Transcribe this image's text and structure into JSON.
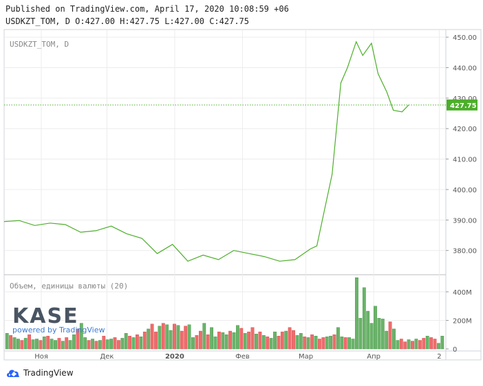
{
  "header": {
    "line1": "Published on TradingView.com, April 17, 2020 10:08:59 +06",
    "line2": "USDKZT_TOM, D O:427.00 H:427.75 L:427.00 C:427.75"
  },
  "symbol_label": "USDKZT_TOM, D",
  "volume_label": "Объем, единицы валюты (20)",
  "kase": {
    "logo": "KASE",
    "powered": "powered by TradingView"
  },
  "footer": {
    "brand": "TradingView"
  },
  "colors": {
    "line": "#4caf2a",
    "vol_up": "#6ab36a",
    "vol_down": "#f06b6b",
    "last_bg": "#4caf2a",
    "grid": "#ececec"
  },
  "chart_data": [
    {
      "type": "line",
      "series": [
        {
          "name": "USDKZT_TOM, D"
        }
      ],
      "x": [
        "2019-10-15",
        "2019-10-22",
        "2019-10-29",
        "2019-11-05",
        "2019-11-12",
        "2019-11-19",
        "2019-11-26",
        "2019-12-03",
        "2019-12-10",
        "2019-12-17",
        "2019-12-24",
        "2019-12-31",
        "2020-01-07",
        "2020-01-14",
        "2020-01-21",
        "2020-01-28",
        "2020-02-04",
        "2020-02-11",
        "2020-02-18",
        "2020-02-25",
        "2020-03-03",
        "2020-03-06",
        "2020-03-10",
        "2020-03-13",
        "2020-03-17",
        "2020-03-20",
        "2020-03-24",
        "2020-03-27",
        "2020-03-31",
        "2020-04-03",
        "2020-04-07",
        "2020-04-10",
        "2020-04-14",
        "2020-04-17"
      ],
      "values": [
        389.5,
        389.8,
        388.2,
        389.0,
        388.5,
        386.0,
        386.5,
        388.0,
        385.5,
        384.0,
        379.0,
        382.0,
        376.5,
        378.5,
        377.0,
        380.0,
        379.0,
        378.0,
        376.5,
        377.0,
        380.5,
        381.5,
        395.0,
        405.0,
        435.0,
        440.0,
        448.5,
        444.0,
        448.0,
        438.0,
        432.0,
        426.0,
        425.5,
        427.75
      ],
      "last_value": "427.75",
      "y_ticks": [
        "450.00",
        "440.00",
        "430.00",
        "420.00",
        "410.00",
        "400.00",
        "390.00",
        "380.00"
      ],
      "ylim": [
        372.5,
        452.5
      ]
    },
    {
      "type": "bar",
      "series": [
        {
          "name": "Объем, единицы валюты (20)"
        }
      ],
      "values": [
        110,
        95,
        80,
        70,
        60,
        75,
        100,
        65,
        70,
        60,
        85,
        90,
        70,
        60,
        75,
        55,
        80,
        60,
        100,
        140,
        180,
        80,
        60,
        70,
        55,
        60,
        90,
        65,
        70,
        80,
        60,
        75,
        110,
        90,
        80,
        100,
        85,
        120,
        140,
        175,
        120,
        160,
        180,
        170,
        130,
        175,
        165,
        125,
        160,
        170,
        80,
        95,
        125,
        180,
        100,
        150,
        85,
        120,
        115,
        100,
        125,
        115,
        165,
        145,
        110,
        120,
        150,
        105,
        120,
        95,
        85,
        75,
        120,
        90,
        120,
        125,
        150,
        130,
        95,
        110,
        85,
        80,
        100,
        90,
        70,
        80,
        85,
        90,
        100,
        150,
        85,
        80,
        80,
        70,
        500,
        215,
        430,
        265,
        180,
        300,
        215,
        210,
        125,
        190,
        140,
        60,
        70,
        50,
        65,
        55,
        70,
        60,
        75,
        90,
        80,
        70,
        40,
        90
      ],
      "up": [
        1,
        0,
        1,
        1,
        0,
        1,
        0,
        1,
        1,
        0,
        1,
        0,
        1,
        1,
        0,
        1,
        0,
        1,
        1,
        0,
        1,
        1,
        0,
        1,
        0,
        1,
        0,
        1,
        1,
        0,
        0,
        1,
        1,
        0,
        1,
        0,
        1,
        0,
        1,
        0,
        0,
        1,
        0,
        1,
        1,
        0,
        1,
        0,
        0,
        1,
        1,
        0,
        0,
        1,
        0,
        1,
        1,
        0,
        1,
        1,
        0,
        1,
        1,
        0,
        1,
        0,
        0,
        1,
        0,
        1,
        0,
        1,
        1,
        0,
        0,
        1,
        0,
        0,
        1,
        1,
        0,
        1,
        0,
        1,
        0,
        0,
        1,
        1,
        0,
        1,
        1,
        0,
        1,
        1,
        1,
        1,
        1,
        1,
        1,
        1,
        1,
        1,
        1,
        0,
        1,
        1,
        0,
        0,
        1,
        0,
        1,
        0,
        0,
        1,
        0,
        0,
        1,
        1
      ],
      "y_ticks": [
        "400M",
        "200M",
        "0"
      ],
      "ylim": [
        0,
        520
      ]
    }
  ],
  "x_ticks": [
    {
      "label": "Ноя",
      "date": "2019-11-01"
    },
    {
      "label": "Дек",
      "date": "2019-12-01"
    },
    {
      "label": "2020",
      "date": "2020-01-01"
    },
    {
      "label": "Фев",
      "date": "2020-02-01"
    },
    {
      "label": "Мар",
      "date": "2020-03-01"
    },
    {
      "label": "Апр",
      "date": "2020-04-01"
    },
    {
      "label": "2",
      "date": "2020-05-01"
    }
  ],
  "x_range": [
    "2019-10-15",
    "2020-05-04"
  ]
}
